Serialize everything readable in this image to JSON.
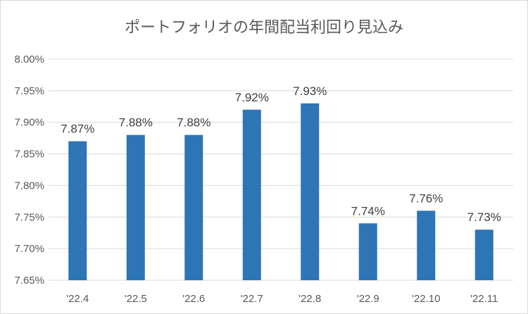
{
  "chart_data": {
    "type": "bar",
    "title": "ポートフォリオの年間配当利回り見込み",
    "xlabel": "",
    "ylabel": "",
    "categories": [
      "'22.4",
      "'22.5",
      "'22.6",
      "'22.7",
      "'22.8",
      "'22.9",
      "'22.10",
      "'22.11"
    ],
    "values": [
      7.87,
      7.88,
      7.88,
      7.92,
      7.93,
      7.74,
      7.76,
      7.73
    ],
    "data_labels": [
      "7.87%",
      "7.88%",
      "7.88%",
      "7.92%",
      "7.93%",
      "7.74%",
      "7.76%",
      "7.73%"
    ],
    "ylim": [
      7.65,
      8.0
    ],
    "yticks": [
      7.65,
      7.7,
      7.75,
      7.8,
      7.85,
      7.9,
      7.95,
      8.0
    ],
    "ytick_labels": [
      "7.65%",
      "7.70%",
      "7.75%",
      "7.80%",
      "7.85%",
      "7.90%",
      "7.95%",
      "8.00%"
    ],
    "grid": true,
    "legend": "none",
    "bar_color": "#2E75B6"
  }
}
